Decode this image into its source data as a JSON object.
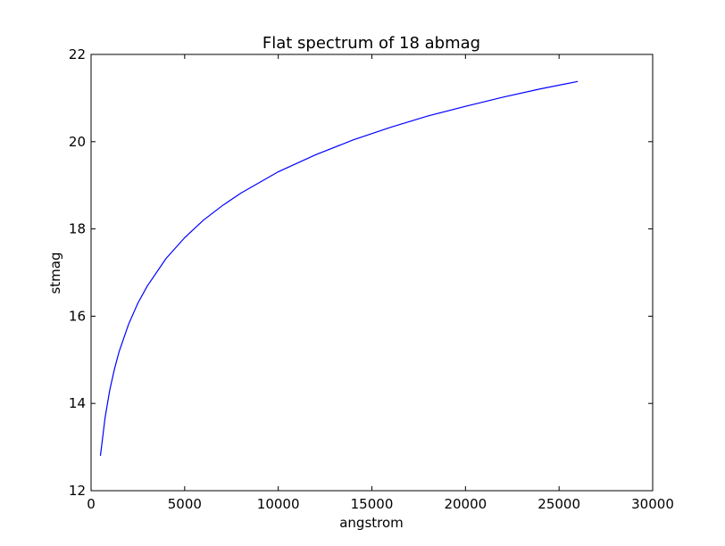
{
  "chart_data": {
    "type": "line",
    "title": "Flat spectrum of 18 abmag",
    "xlabel": "angstrom",
    "ylabel": "stmag",
    "xlim": [
      0,
      30000
    ],
    "ylim": [
      12,
      22
    ],
    "xticks": [
      "0",
      "5000",
      "10000",
      "15000",
      "20000",
      "25000",
      "30000"
    ],
    "yticks": [
      "12",
      "14",
      "16",
      "18",
      "20",
      "22"
    ],
    "grid": false,
    "legend": "none",
    "series": [
      {
        "color": "#0000ff",
        "x": [
          500,
          750,
          1000,
          1250,
          1500,
          2000,
          2500,
          3000,
          4000,
          5000,
          6000,
          7000,
          8000,
          10000,
          12000,
          14000,
          16000,
          18000,
          20000,
          22000,
          24000,
          26000
        ],
        "y": [
          12.8,
          13.68,
          14.31,
          14.79,
          15.19,
          15.81,
          16.3,
          16.69,
          17.32,
          17.8,
          18.2,
          18.53,
          18.82,
          19.31,
          19.7,
          20.04,
          20.33,
          20.59,
          20.81,
          21.02,
          21.21,
          21.38
        ]
      }
    ]
  }
}
